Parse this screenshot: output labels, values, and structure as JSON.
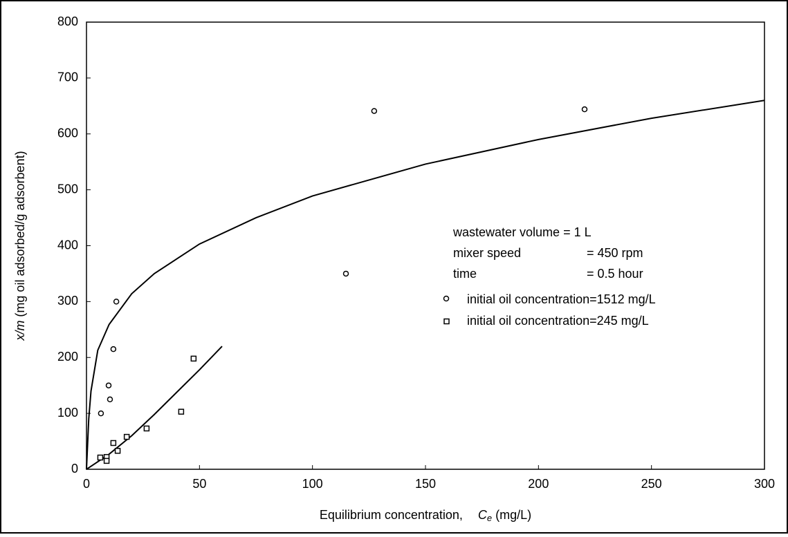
{
  "chart_data": {
    "type": "scatter",
    "x_label": {
      "text": "Equilibrium concentration,",
      "symbol": "C",
      "subscript": "e",
      "unit": "(mg/L)"
    },
    "y_label": {
      "symbol": "x/m",
      "text": "(mg oil adsorbed/g adsorbent)"
    },
    "xlim": [
      0,
      300
    ],
    "xticks": [
      0,
      50,
      100,
      150,
      200,
      250,
      300
    ],
    "ylim": [
      0,
      800
    ],
    "yticks": [
      0,
      100,
      200,
      300,
      400,
      500,
      600,
      700,
      800
    ],
    "annotations": [
      {
        "label": "wastewater volume = 1 L",
        "value": ""
      },
      {
        "label": "mixer speed",
        "value": "= 450 rpm"
      },
      {
        "label": "time",
        "value": "= 0.5 hour"
      }
    ],
    "series": [
      {
        "name": "initial oil concentration=1512 mg/L",
        "marker": "circle",
        "color": "#000000",
        "x": [
          6.4,
          9.8,
          10.4,
          11.9,
          13.2,
          114.8,
          127.3,
          220.4
        ],
        "values": [
          100,
          150,
          125,
          215,
          300,
          350,
          641,
          644
        ]
      },
      {
        "name": "initial oil concentration=245 mg/L",
        "marker": "square",
        "color": "#000000",
        "x": [
          6.1,
          8.9,
          8.9,
          11.9,
          13.8,
          17.8,
          26.6,
          41.9,
          47.4
        ],
        "values": [
          21,
          22,
          15,
          47,
          33,
          58,
          73,
          103,
          198
        ]
      }
    ],
    "curves": [
      {
        "color": "#000000",
        "x": [
          0,
          1,
          2,
          5,
          10,
          20,
          30,
          50,
          75,
          100,
          150,
          200,
          250,
          300
        ],
        "values": [
          0,
          90,
          140,
          213,
          259,
          314,
          350,
          403,
          450,
          489,
          546,
          590,
          628,
          660
        ]
      },
      {
        "color": "#000000",
        "x": [
          0,
          10,
          20,
          30,
          40,
          50,
          60
        ],
        "values": [
          0,
          27,
          60,
          98,
          138,
          178,
          220
        ]
      }
    ]
  }
}
